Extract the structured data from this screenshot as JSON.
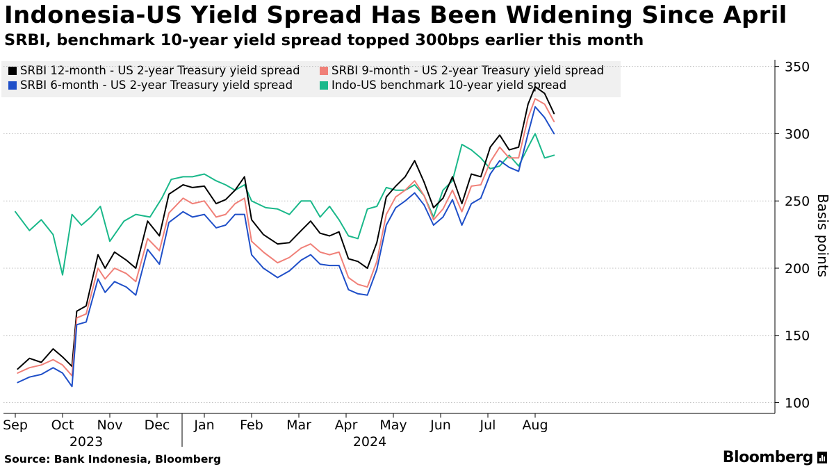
{
  "title": "Indonesia-US Yield Spread Has Been Widening Since April",
  "subtitle": "SRBI, benchmark 10-year yield spread topped 300bps earlier this month",
  "source": "Source: Bank Indonesia, Bloomberg",
  "brand": "Bloomberg",
  "chart_data": {
    "type": "line",
    "ylabel": "Basis points",
    "ylim": [
      92,
      355
    ],
    "yticks": [
      100,
      150,
      200,
      250,
      300,
      350
    ],
    "grid": true,
    "x_unit": "month index (0 = start of Sep 2023)",
    "xlim": [
      0,
      11.3
    ],
    "month_labels": [
      {
        "x": 0,
        "label": "Sep"
      },
      {
        "x": 1,
        "label": "Oct"
      },
      {
        "x": 2,
        "label": "Nov"
      },
      {
        "x": 3,
        "label": "Dec"
      },
      {
        "x": 4,
        "label": "Jan"
      },
      {
        "x": 5,
        "label": "Feb"
      },
      {
        "x": 6,
        "label": "Mar"
      },
      {
        "x": 7,
        "label": "Apr"
      },
      {
        "x": 8,
        "label": "May"
      },
      {
        "x": 9,
        "label": "Jun"
      },
      {
        "x": 10,
        "label": "Jul"
      },
      {
        "x": 11,
        "label": "Aug"
      }
    ],
    "year_labels": [
      {
        "x": 1.5,
        "label": "2023"
      },
      {
        "x": 7.5,
        "label": "2024"
      }
    ],
    "series": [
      {
        "name": "SRBI 12-month - US 2-year Treasury yield spread",
        "color": "#000000",
        "points": [
          [
            0.05,
            125
          ],
          [
            0.3,
            133
          ],
          [
            0.55,
            130
          ],
          [
            0.8,
            140
          ],
          [
            1.0,
            134
          ],
          [
            1.2,
            127
          ],
          [
            1.3,
            168
          ],
          [
            1.5,
            172
          ],
          [
            1.75,
            210
          ],
          [
            1.9,
            200
          ],
          [
            2.1,
            212
          ],
          [
            2.35,
            206
          ],
          [
            2.55,
            200
          ],
          [
            2.8,
            235
          ],
          [
            3.05,
            224
          ],
          [
            3.25,
            255
          ],
          [
            3.55,
            262
          ],
          [
            3.75,
            260
          ],
          [
            4.0,
            261
          ],
          [
            4.25,
            248
          ],
          [
            4.45,
            251
          ],
          [
            4.65,
            258
          ],
          [
            4.85,
            268
          ],
          [
            5.0,
            236
          ],
          [
            5.25,
            225
          ],
          [
            5.55,
            218
          ],
          [
            5.8,
            219
          ],
          [
            6.05,
            228
          ],
          [
            6.25,
            235
          ],
          [
            6.45,
            226
          ],
          [
            6.65,
            224
          ],
          [
            6.85,
            227
          ],
          [
            7.05,
            207
          ],
          [
            7.25,
            205
          ],
          [
            7.45,
            200
          ],
          [
            7.65,
            219
          ],
          [
            7.85,
            253
          ],
          [
            8.05,
            261
          ],
          [
            8.25,
            268
          ],
          [
            8.45,
            280
          ],
          [
            8.65,
            264
          ],
          [
            8.85,
            245
          ],
          [
            9.05,
            252
          ],
          [
            9.25,
            268
          ],
          [
            9.45,
            248
          ],
          [
            9.65,
            270
          ],
          [
            9.85,
            268
          ],
          [
            10.05,
            290
          ],
          [
            10.25,
            299
          ],
          [
            10.45,
            288
          ],
          [
            10.65,
            290
          ],
          [
            10.85,
            322
          ],
          [
            11.0,
            335
          ],
          [
            11.2,
            330
          ],
          [
            11.4,
            315
          ]
        ]
      },
      {
        "name": "SRBI 9-month - US 2-year Treasury yield spread",
        "color": "#f08078",
        "points": [
          [
            0.05,
            122
          ],
          [
            0.3,
            126
          ],
          [
            0.55,
            128
          ],
          [
            0.8,
            132
          ],
          [
            1.0,
            128
          ],
          [
            1.2,
            120
          ],
          [
            1.3,
            163
          ],
          [
            1.5,
            166
          ],
          [
            1.75,
            200
          ],
          [
            1.9,
            192
          ],
          [
            2.1,
            200
          ],
          [
            2.35,
            196
          ],
          [
            2.55,
            190
          ],
          [
            2.8,
            222
          ],
          [
            3.05,
            213
          ],
          [
            3.25,
            241
          ],
          [
            3.55,
            252
          ],
          [
            3.75,
            248
          ],
          [
            4.0,
            250
          ],
          [
            4.25,
            238
          ],
          [
            4.45,
            240
          ],
          [
            4.65,
            248
          ],
          [
            4.85,
            252
          ],
          [
            5.0,
            220
          ],
          [
            5.25,
            212
          ],
          [
            5.55,
            204
          ],
          [
            5.8,
            208
          ],
          [
            6.05,
            215
          ],
          [
            6.25,
            218
          ],
          [
            6.45,
            212
          ],
          [
            6.65,
            210
          ],
          [
            6.85,
            212
          ],
          [
            7.05,
            193
          ],
          [
            7.25,
            188
          ],
          [
            7.45,
            186
          ],
          [
            7.65,
            205
          ],
          [
            7.85,
            240
          ],
          [
            8.05,
            253
          ],
          [
            8.25,
            258
          ],
          [
            8.45,
            265
          ],
          [
            8.65,
            254
          ],
          [
            8.85,
            236
          ],
          [
            9.05,
            244
          ],
          [
            9.25,
            258
          ],
          [
            9.45,
            242
          ],
          [
            9.65,
            261
          ],
          [
            9.85,
            262
          ],
          [
            10.05,
            279
          ],
          [
            10.25,
            290
          ],
          [
            10.45,
            282
          ],
          [
            10.65,
            282
          ],
          [
            10.85,
            312
          ],
          [
            11.0,
            326
          ],
          [
            11.2,
            322
          ],
          [
            11.4,
            309
          ]
        ]
      },
      {
        "name": "SRBI 6-month - US 2-year Treasury yield spread",
        "color": "#1f4fc8",
        "points": [
          [
            0.05,
            115
          ],
          [
            0.3,
            119
          ],
          [
            0.55,
            121
          ],
          [
            0.8,
            126
          ],
          [
            1.0,
            122
          ],
          [
            1.2,
            112
          ],
          [
            1.3,
            158
          ],
          [
            1.5,
            160
          ],
          [
            1.75,
            192
          ],
          [
            1.9,
            182
          ],
          [
            2.1,
            190
          ],
          [
            2.35,
            186
          ],
          [
            2.55,
            180
          ],
          [
            2.8,
            214
          ],
          [
            3.05,
            203
          ],
          [
            3.25,
            234
          ],
          [
            3.55,
            242
          ],
          [
            3.75,
            238
          ],
          [
            4.0,
            240
          ],
          [
            4.25,
            230
          ],
          [
            4.45,
            232
          ],
          [
            4.65,
            240
          ],
          [
            4.85,
            240
          ],
          [
            5.0,
            210
          ],
          [
            5.25,
            200
          ],
          [
            5.55,
            193
          ],
          [
            5.8,
            198
          ],
          [
            6.05,
            206
          ],
          [
            6.25,
            210
          ],
          [
            6.45,
            203
          ],
          [
            6.65,
            202
          ],
          [
            6.85,
            202
          ],
          [
            7.05,
            184
          ],
          [
            7.25,
            181
          ],
          [
            7.45,
            180
          ],
          [
            7.65,
            199
          ],
          [
            7.85,
            232
          ],
          [
            8.05,
            245
          ],
          [
            8.25,
            250
          ],
          [
            8.45,
            256
          ],
          [
            8.65,
            247
          ],
          [
            8.85,
            232
          ],
          [
            9.05,
            238
          ],
          [
            9.25,
            251
          ],
          [
            9.45,
            232
          ],
          [
            9.65,
            248
          ],
          [
            9.85,
            252
          ],
          [
            10.05,
            270
          ],
          [
            10.25,
            280
          ],
          [
            10.45,
            275
          ],
          [
            10.65,
            272
          ],
          [
            10.85,
            300
          ],
          [
            11.0,
            320
          ],
          [
            11.2,
            312
          ],
          [
            11.4,
            300
          ]
        ]
      },
      {
        "name": "Indo-US benchmark 10-year yield spread",
        "color": "#1ab88a",
        "points": [
          [
            0.0,
            242
          ],
          [
            0.3,
            228
          ],
          [
            0.55,
            236
          ],
          [
            0.8,
            225
          ],
          [
            1.0,
            195
          ],
          [
            1.2,
            240
          ],
          [
            1.4,
            232
          ],
          [
            1.6,
            238
          ],
          [
            1.8,
            246
          ],
          [
            2.0,
            220
          ],
          [
            2.3,
            235
          ],
          [
            2.55,
            240
          ],
          [
            2.85,
            238
          ],
          [
            3.1,
            252
          ],
          [
            3.3,
            266
          ],
          [
            3.55,
            268
          ],
          [
            3.75,
            268
          ],
          [
            4.0,
            270
          ],
          [
            4.25,
            265
          ],
          [
            4.45,
            262
          ],
          [
            4.65,
            258
          ],
          [
            4.85,
            262
          ],
          [
            5.0,
            250
          ],
          [
            5.3,
            245
          ],
          [
            5.55,
            244
          ],
          [
            5.8,
            240
          ],
          [
            6.05,
            250
          ],
          [
            6.25,
            250
          ],
          [
            6.45,
            238
          ],
          [
            6.65,
            246
          ],
          [
            6.85,
            236
          ],
          [
            7.05,
            224
          ],
          [
            7.25,
            222
          ],
          [
            7.45,
            244
          ],
          [
            7.65,
            246
          ],
          [
            7.85,
            260
          ],
          [
            8.05,
            258
          ],
          [
            8.25,
            258
          ],
          [
            8.45,
            262
          ],
          [
            8.65,
            254
          ],
          [
            8.85,
            238
          ],
          [
            9.05,
            258
          ],
          [
            9.25,
            265
          ],
          [
            9.45,
            292
          ],
          [
            9.65,
            288
          ],
          [
            9.85,
            282
          ],
          [
            10.05,
            274
          ],
          [
            10.25,
            276
          ],
          [
            10.45,
            284
          ],
          [
            10.65,
            276
          ],
          [
            10.85,
            290
          ],
          [
            11.0,
            300
          ],
          [
            11.2,
            282
          ],
          [
            11.4,
            284
          ]
        ]
      }
    ]
  }
}
